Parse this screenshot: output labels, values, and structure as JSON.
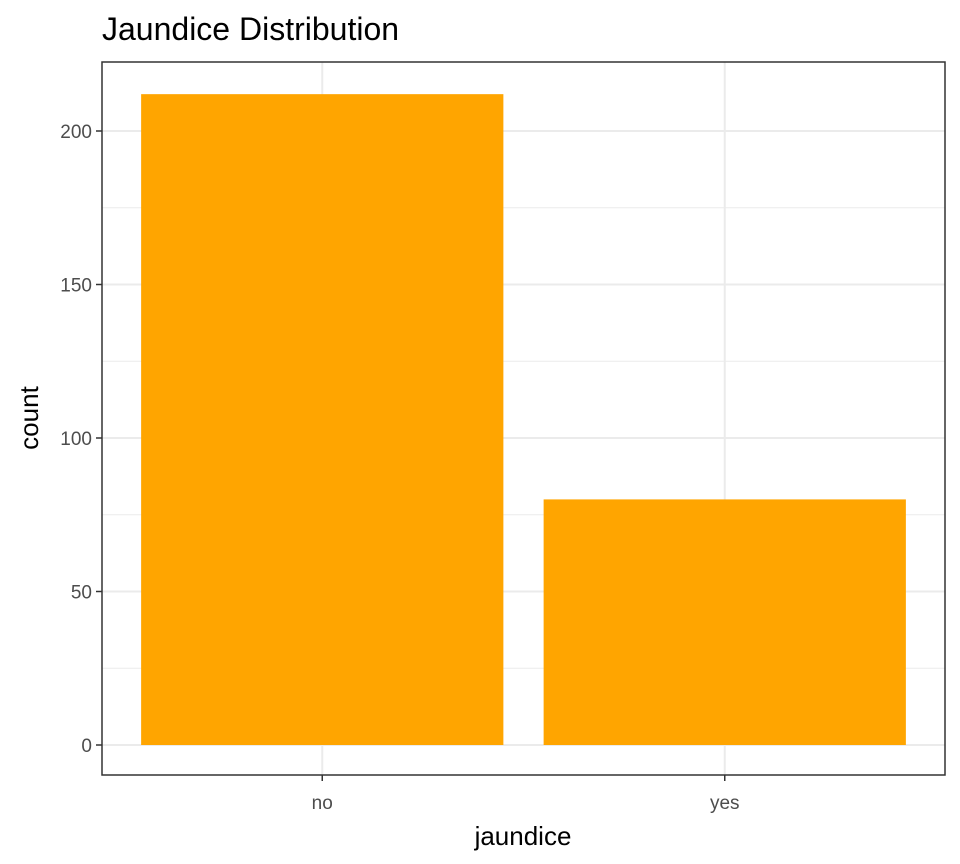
{
  "chart_data": {
    "type": "bar",
    "title": "Jaundice Distribution",
    "xlabel": "jaundice",
    "ylabel": "count",
    "categories": [
      "no",
      "yes"
    ],
    "values": [
      212,
      80
    ],
    "ylim": [
      0,
      222
    ],
    "yticks": [
      0,
      50,
      100,
      150,
      200
    ],
    "grid": true,
    "bar_color": "#FFA500",
    "grid_color": "#EBEBEB",
    "panel_border_color": "#333333"
  }
}
